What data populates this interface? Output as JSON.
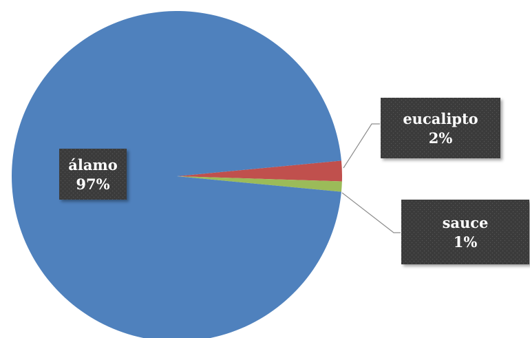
{
  "chart_data": {
    "type": "pie",
    "slices": [
      {
        "name": "álamo",
        "value": 97,
        "value_label": "97%",
        "color": "#4f81bd"
      },
      {
        "name": "eucalipto",
        "value": 2,
        "value_label": "2%",
        "color": "#c0504d"
      },
      {
        "name": "sauce",
        "value": 1,
        "value_label": "1%",
        "color": "#9bbb59"
      }
    ],
    "legend": "none",
    "data_labels": "callout boxes with category name and percentage"
  },
  "label_box_color": "#3a3a3a"
}
